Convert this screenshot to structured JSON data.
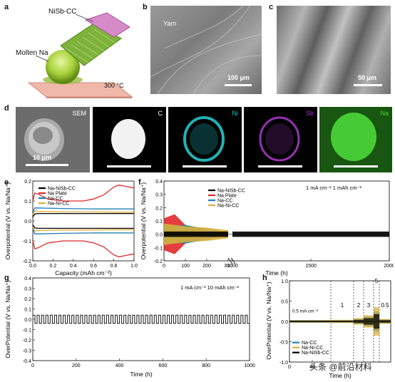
{
  "panel_labels": {
    "a": "a",
    "b": "b",
    "c": "c",
    "d": "d",
    "e": "e",
    "f": "f",
    "g": "g",
    "h": "h"
  },
  "panel_a": {
    "top_label": "NiSb-CC",
    "left_label": "Molten Na",
    "temp_label": "300 °C"
  },
  "panel_b": {
    "label": "Yarn",
    "scale": "100 μm"
  },
  "panel_c": {
    "scale": "50 μm"
  },
  "panel_d": {
    "sem_label": "SEM",
    "scale": "10 μm",
    "maps": [
      {
        "label": "C",
        "color": "#ffffff"
      },
      {
        "label": "Ni",
        "color": "#27c3c8"
      },
      {
        "label": "Sb",
        "color": "#b03ad0"
      },
      {
        "label": "Na",
        "color": "#4cd83a"
      }
    ]
  },
  "colors": {
    "black": "#000000",
    "red": "#e0282a",
    "teal": "#1f7fb2",
    "gold": "#d9b03a"
  },
  "chart_data": [
    {
      "panel": "e",
      "type": "line",
      "xlabel": "Capacity (mAh cm⁻²)",
      "ylabel": "Overpotential (V vs. Na/Na⁺)",
      "xlim": [
        0,
        1.0
      ],
      "ylim": [
        -0.2,
        0.2
      ],
      "xticks": [
        "0.0",
        "0.2",
        "0.4",
        "0.6",
        "0.8",
        "1.0"
      ],
      "yticks": [
        "0.2",
        "0.1",
        "0.0",
        "-0.1",
        "-0.2"
      ],
      "legend": [
        "Na-NiSb-CC",
        "Na Plate",
        "Na-CC",
        "Na-Ni-CC"
      ],
      "series": [
        {
          "name": "Na-NiSb-CC",
          "color": "#000000",
          "x": [
            0,
            0.02,
            0.05,
            0.2,
            0.4,
            0.6,
            0.8,
            1.0
          ],
          "y": [
            0.02,
            0.035,
            0.037,
            0.037,
            0.037,
            0.037,
            0.037,
            0.037
          ],
          "mirror": true
        },
        {
          "name": "Na Plate",
          "color": "#e0282a",
          "x": [
            0,
            0.02,
            0.05,
            0.15,
            0.3,
            0.5,
            0.6,
            0.7,
            0.8,
            0.85,
            0.9,
            0.95,
            1.0
          ],
          "y": [
            0.1,
            0.14,
            0.135,
            0.11,
            0.1,
            0.1,
            0.11,
            0.13,
            0.17,
            0.18,
            0.175,
            0.17,
            0.165
          ],
          "mirror": true
        },
        {
          "name": "Na-CC",
          "color": "#1f7fb2",
          "x": [
            0,
            0.02,
            0.05,
            0.3,
            0.6,
            0.8,
            1.0
          ],
          "y": [
            0.04,
            0.065,
            0.065,
            0.062,
            0.06,
            0.06,
            0.06
          ],
          "mirror": true
        },
        {
          "name": "Na-Ni-CC",
          "color": "#d9b03a",
          "x": [
            0,
            0.02,
            0.05,
            0.3,
            0.6,
            0.8,
            1.0
          ],
          "y": [
            0.03,
            0.05,
            0.048,
            0.045,
            0.045,
            0.044,
            0.044
          ],
          "mirror": true
        }
      ]
    },
    {
      "panel": "f",
      "type": "line",
      "xlabel": "Time (h)",
      "ylabel": "Overpotential (V vs. Na/Na⁺)",
      "ylim": [
        -0.2,
        0.4
      ],
      "xticks": [
        "0",
        "100",
        "200",
        "300",
        "1000",
        "1500",
        "2000"
      ],
      "yticks": [
        "0.4",
        "0.3",
        "0.2",
        "0.1",
        "0.0",
        "-0.1",
        "-0.2"
      ],
      "legend": [
        "Na-NiSb-CC",
        "Na Plate",
        "Na-CC",
        "Na-Ni-CC"
      ],
      "annotation": "1 mA cm⁻²   1 mAh cm⁻²",
      "series": [
        {
          "name": "Na Plate",
          "color": "#e0282a",
          "x": [
            0,
            50,
            100,
            150
          ],
          "amplitude": [
            0.12,
            0.15,
            0.07,
            0.02
          ]
        },
        {
          "name": "Na-CC",
          "color": "#1f7fb2",
          "x": [
            0,
            100,
            200,
            300
          ],
          "amplitude": [
            0.06,
            0.07,
            0.04,
            0.01
          ]
        },
        {
          "name": "Na-Ni-CC",
          "color": "#d9b03a",
          "x": [
            0,
            100,
            200,
            300
          ],
          "amplitude": [
            0.08,
            0.06,
            0.05,
            0.03
          ]
        },
        {
          "name": "Na-NiSb-CC",
          "color": "#000000",
          "x": [
            0,
            300,
            1000,
            2000
          ],
          "amplitude": [
            0.02,
            0.02,
            0.02,
            0.02
          ]
        }
      ]
    },
    {
      "panel": "g",
      "type": "line",
      "xlabel": "Time (h)",
      "ylabel": "OverPotential (V vs. Na/Na⁺)",
      "xlim": [
        0,
        1000
      ],
      "ylim": [
        -0.4,
        0.4
      ],
      "xticks": [
        "0",
        "200",
        "400",
        "600",
        "800",
        "1000"
      ],
      "yticks": [
        "0.4",
        "0.3",
        "0.2",
        "0.1",
        "0.0",
        "-0.1",
        "-0.2",
        "-0.3",
        "-0.4"
      ],
      "annotation": "1 mA cm⁻²   10 mAh cm⁻²",
      "series": [
        {
          "name": "Na-NiSb-CC",
          "color": "#000000",
          "amplitude": 0.04,
          "cycles": 50
        }
      ]
    },
    {
      "panel": "h",
      "type": "line",
      "xlabel": "Time (h)",
      "ylabel": "OverPotential (V vs. Na/Na⁺)",
      "ylim": [
        -1.0,
        1.0
      ],
      "xticks": [
        "0",
        "40"
      ],
      "yticks": [
        "1.0",
        "0.5",
        "0.0",
        "-0.5",
        "-1.0"
      ],
      "legend": [
        "Na-CC",
        "Na-Ni-CC",
        "Na-NiSb-CC"
      ],
      "region_labels": [
        "0.5 mA cm⁻²",
        "1",
        "2",
        "3",
        "5",
        "0.5"
      ],
      "series": [
        {
          "name": "Na-CC",
          "color": "#1f7fb2"
        },
        {
          "name": "Na-Ni-CC",
          "color": "#d9b03a"
        },
        {
          "name": "Na-NiSb-CC",
          "color": "#000000"
        }
      ]
    }
  ],
  "watermark": "头条 @前沿材料"
}
